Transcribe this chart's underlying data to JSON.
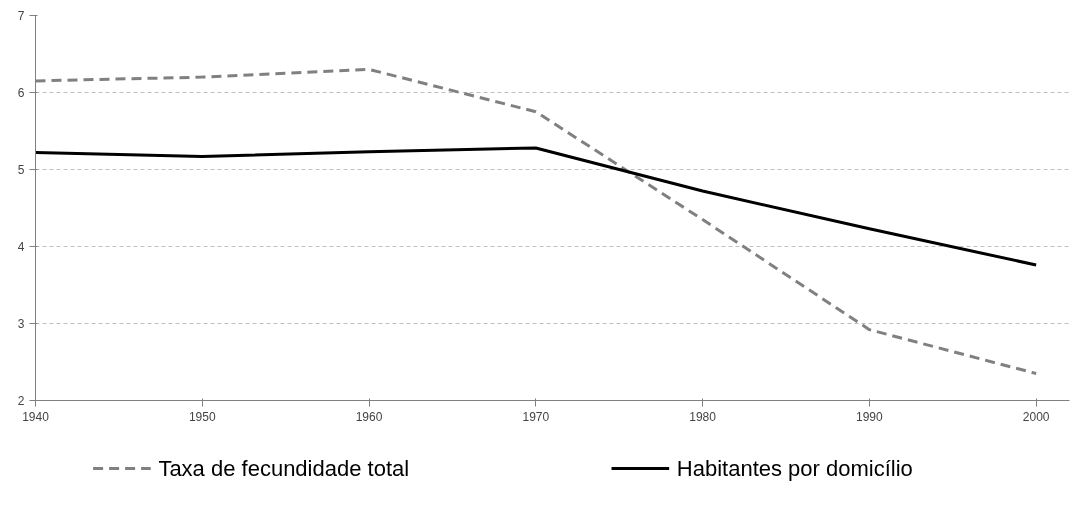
{
  "chart_data": {
    "type": "line",
    "x": [
      1940,
      1950,
      1960,
      1970,
      1980,
      1990,
      2000
    ],
    "series": [
      {
        "name": "Taxa de fecundidade total",
        "color": "#808080",
        "line_style": "dashed",
        "values": [
          6.15,
          6.2,
          6.3,
          5.75,
          4.35,
          2.92,
          2.35
        ]
      },
      {
        "name": "Habitantes por domicílio",
        "color": "#000000",
        "line_style": "solid",
        "values": [
          5.22,
          5.17,
          5.23,
          5.28,
          4.72,
          4.23,
          3.76
        ]
      }
    ],
    "xlim": [
      1940,
      2002
    ],
    "xticks": [
      1940,
      1950,
      1960,
      1970,
      1980,
      1990,
      2000
    ],
    "ylim": [
      2,
      7
    ],
    "yticks": [
      2,
      3,
      4,
      5,
      6,
      7
    ],
    "grid": "y",
    "legend": "bottom",
    "marker": "none"
  }
}
